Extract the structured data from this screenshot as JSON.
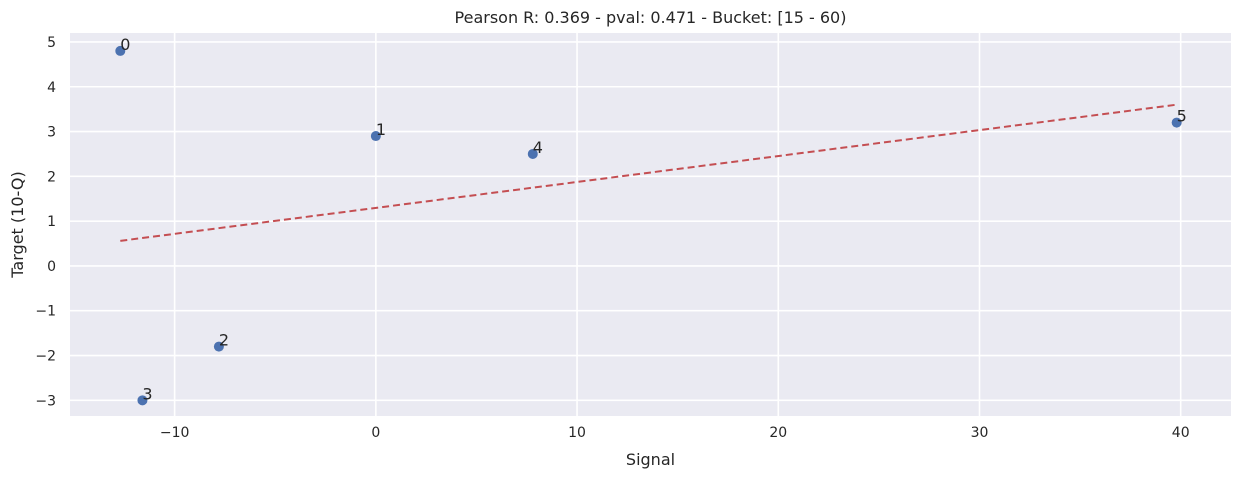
{
  "chart_data": {
    "type": "scatter",
    "title": "Pearson R: 0.369 - pval: 0.471 - Bucket: [15 - 60)",
    "xlabel": "Signal",
    "ylabel": "Target (10-Q)",
    "xlim": [
      -15.2,
      42.5
    ],
    "ylim": [
      -3.35,
      5.2
    ],
    "xticks": [
      -10,
      0,
      10,
      20,
      30,
      40
    ],
    "xtick_labels": [
      "−10",
      "0",
      "10",
      "20",
      "30",
      "40"
    ],
    "yticks": [
      -3,
      -2,
      -1,
      0,
      1,
      2,
      3,
      4,
      5
    ],
    "ytick_labels": [
      "−3",
      "−2",
      "−1",
      "0",
      "1",
      "2",
      "3",
      "4",
      "5"
    ],
    "grid": true,
    "series": [
      {
        "points": [
          {
            "label": "0",
            "x": -12.7,
            "y": 4.8
          },
          {
            "label": "1",
            "x": 0.0,
            "y": 2.9
          },
          {
            "label": "2",
            "x": -7.8,
            "y": -1.8
          },
          {
            "label": "3",
            "x": -11.6,
            "y": -3.0
          },
          {
            "label": "4",
            "x": 7.8,
            "y": 2.5
          },
          {
            "label": "5",
            "x": 39.8,
            "y": 3.2
          }
        ],
        "color": "#4c72b0"
      }
    ],
    "fit_line": {
      "x": [
        -12.7,
        39.8
      ],
      "y": [
        0.56,
        3.6
      ],
      "color": "#c44e52",
      "style": "dashed"
    },
    "colors": {
      "plot_background": "#eaeaf2",
      "grid": "#ffffff",
      "text": "#262626"
    }
  }
}
